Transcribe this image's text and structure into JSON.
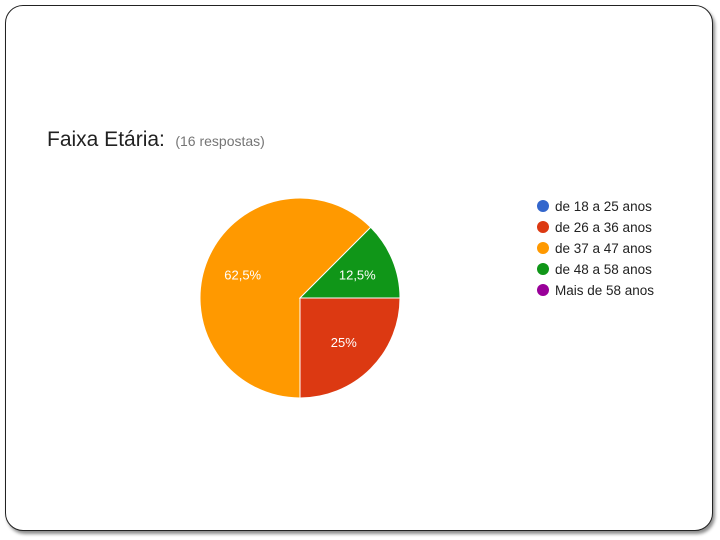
{
  "chart_data": {
    "type": "pie",
    "title": "Faixa Etária:",
    "subtitle": "(16 respostas)",
    "categories": [
      "de 18 a 25 anos",
      "de 26 a 36 anos",
      "de 37 a 47 anos",
      "de 48 a 58 anos",
      "Mais de 58 anos"
    ],
    "values": [
      0,
      25,
      62.5,
      12.5,
      0
    ],
    "data_labels": [
      "",
      "25%",
      "62,5%",
      "12,5%",
      ""
    ],
    "colors": [
      "#3366cc",
      "#dc3912",
      "#ff9900",
      "#109618",
      "#990099"
    ],
    "legend_position": "right",
    "start_angle_deg": 90,
    "direction": "clockwise"
  }
}
